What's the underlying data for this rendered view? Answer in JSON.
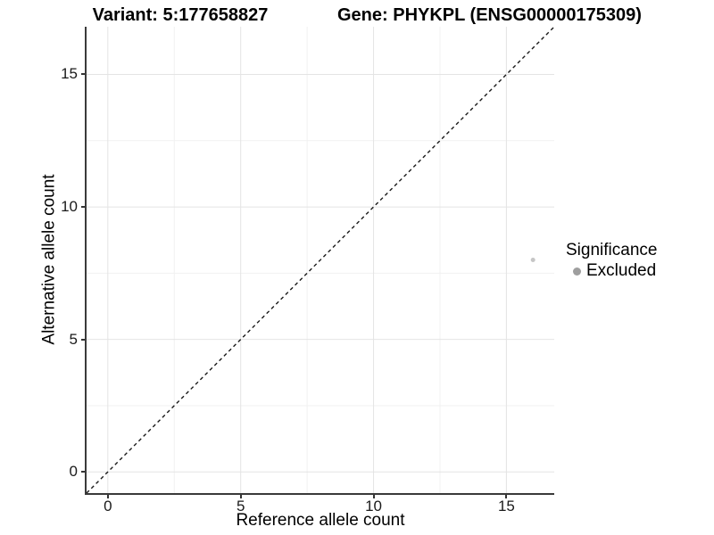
{
  "colors": {
    "background": "#ffffff",
    "axis_line": "#3a3a3a",
    "tick_mark": "#333333",
    "grid_major": "#e4e4e4",
    "grid_minor": "#f1f1f1",
    "identity_line": "#1a1a1a",
    "point": "#c6c6c6",
    "legend_marker": "#9e9e9e",
    "title_text": "#000000",
    "tick_text": "#1a1a1a"
  },
  "chart_data": {
    "type": "scatter",
    "title_left": "Variant: 5:177658827",
    "title_right": "Gene: PHYKPL (ENSG00000175309)",
    "xlabel": "Reference allele count",
    "ylabel": "Alternative allele count",
    "xlim": [
      -0.8,
      16.8
    ],
    "ylim": [
      -0.8,
      16.8
    ],
    "x_ticks": [
      0,
      5,
      10,
      15
    ],
    "y_ticks": [
      0,
      5,
      10,
      15
    ],
    "x_minor_ticks": [
      2.5,
      7.5,
      12.5
    ],
    "y_minor_ticks": [
      2.5,
      7.5,
      12.5
    ],
    "grid": "major+minor",
    "identity_line": {
      "style": "dashed",
      "slope": 1,
      "intercept": 0
    },
    "series": [
      {
        "name": "Excluded",
        "color": "#c6c6c6",
        "marker_diameter_px": 5,
        "points": [
          {
            "x": 16,
            "y": 8
          }
        ]
      }
    ],
    "legend": {
      "title": "Significance",
      "position": "right",
      "items": [
        {
          "label": "Excluded",
          "color": "#9e9e9e"
        }
      ]
    }
  }
}
